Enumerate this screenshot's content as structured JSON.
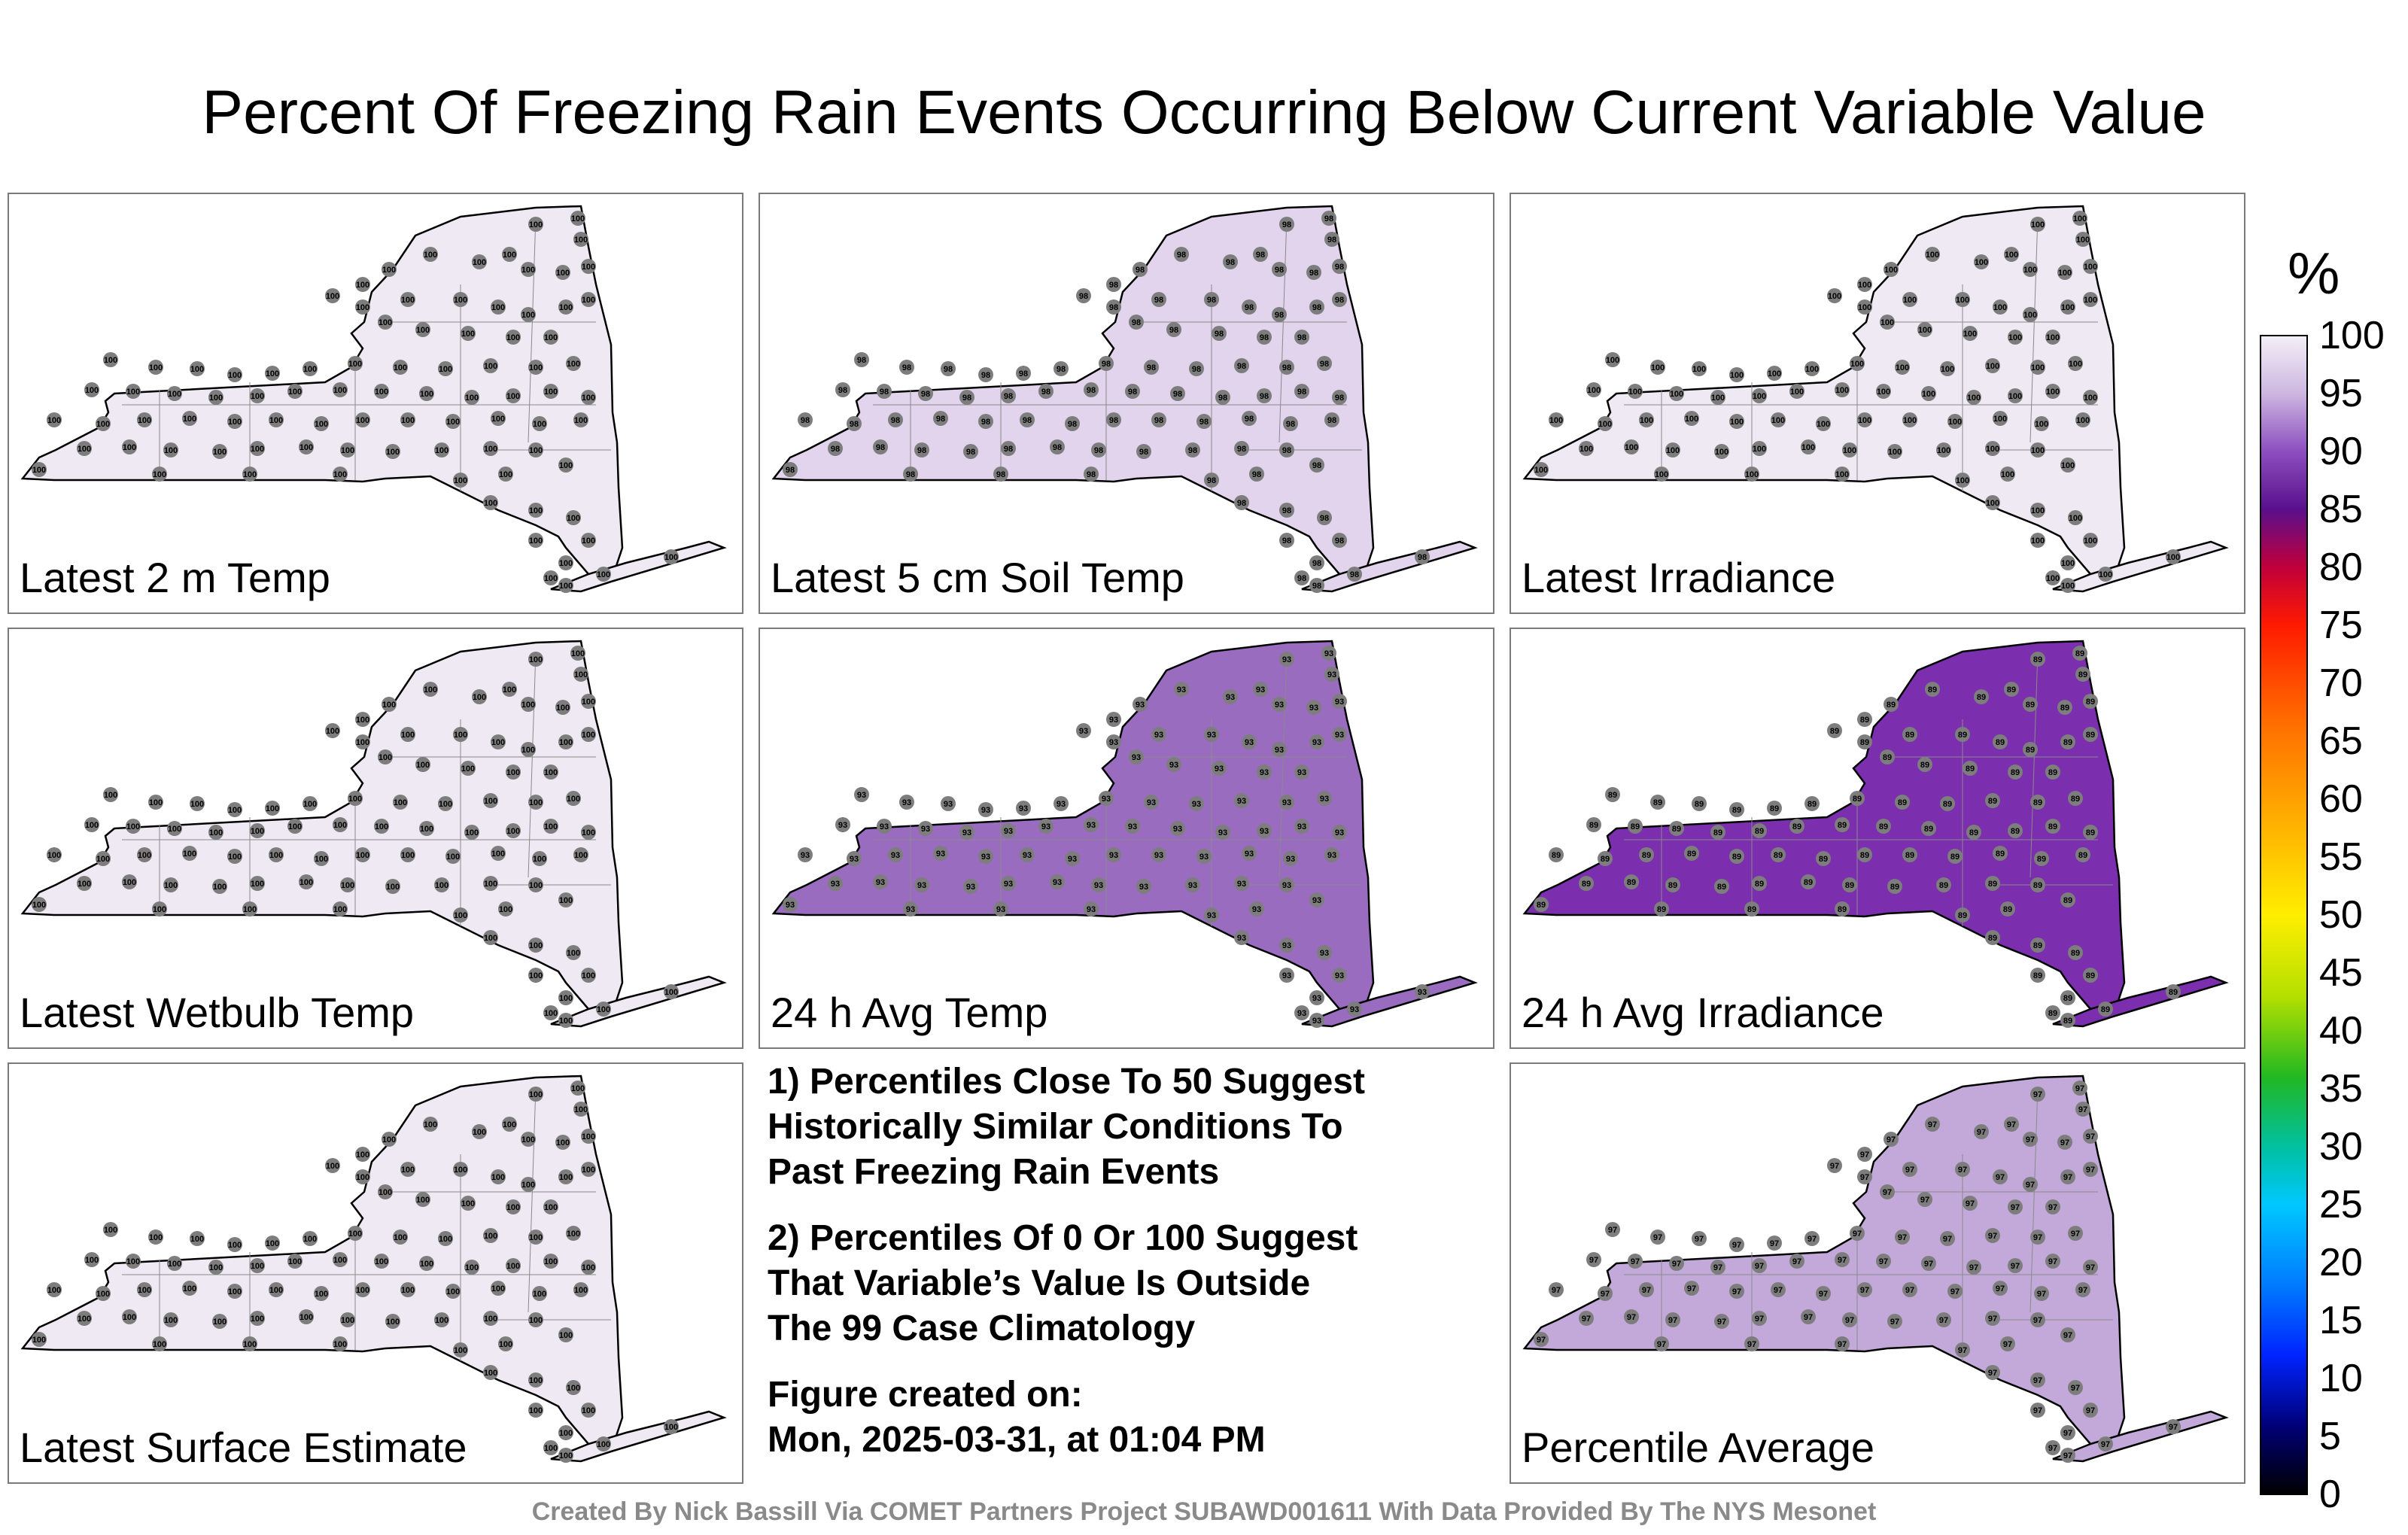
{
  "title": "Percent Of Freezing Rain Events Occurring Below Current Variable Value",
  "panels": [
    {
      "label": "Latest 2 m Temp",
      "value_label": "100",
      "fill": "#efe9f3"
    },
    {
      "label": "Latest 5 cm Soil Temp",
      "value_label": "98",
      "fill": "#e2d4ec"
    },
    {
      "label": "Latest Irradiance",
      "value_label": "100",
      "fill": "#efe9f3"
    },
    {
      "label": "Latest Wetbulb Temp",
      "value_label": "100",
      "fill": "#efe9f3"
    },
    {
      "label": "24 h Avg Temp",
      "value_label": "93",
      "fill": "#9a6cc0"
    },
    {
      "label": "24 h Avg Irradiance",
      "value_label": "89",
      "fill": "#7b2fae"
    },
    {
      "label": "Latest Surface Estimate",
      "value_label": "100",
      "fill": "#efe9f3"
    },
    {
      "label": "Percentile Average",
      "value_label": "97",
      "fill": "#c2a9d9"
    }
  ],
  "notes": {
    "line1": "1) Percentiles Close To 50 Suggest\nHistorically Similar Conditions To\nPast Freezing Rain Events",
    "line2": "2) Percentiles Of 0 Or 100 Suggest\nThat Variable’s Value Is Outside\nThe 99 Case Climatology",
    "line3": "Figure created on:\nMon, 2025-03-31, at 01:04 PM"
  },
  "colorbar": {
    "unit": "%",
    "ticks": [
      "100",
      "95",
      "90",
      "85",
      "80",
      "75",
      "70",
      "65",
      "60",
      "55",
      "50",
      "45",
      "40",
      "35",
      "30",
      "25",
      "20",
      "15",
      "10",
      "5",
      "0"
    ]
  },
  "credit": "Created By Nick Bassill Via COMET Partners Project SUBAWD001611 With Data Provided By The NYS Mesonet"
}
